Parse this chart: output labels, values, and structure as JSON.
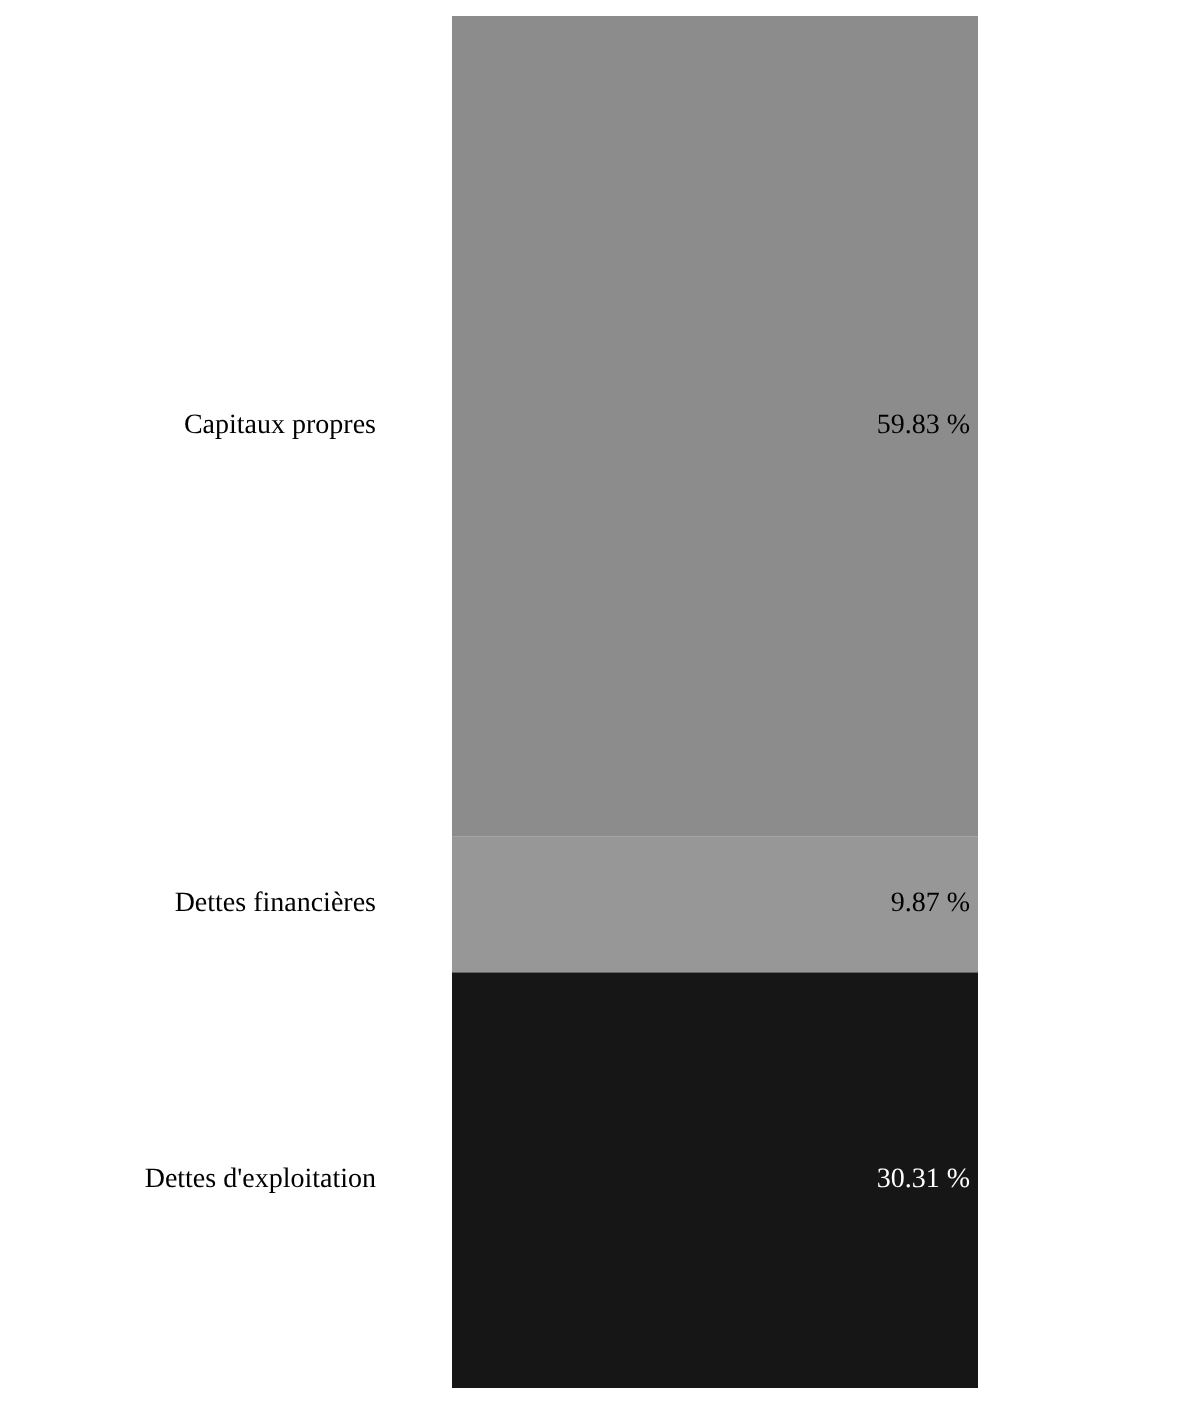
{
  "chart_data": {
    "type": "bar",
    "stacked": true,
    "categories": [
      null
    ],
    "series": [
      {
        "name": "Dettes d'exploitation",
        "color": "#161616",
        "values": [
          30.31
        ],
        "value_labels": [
          "30.31 %"
        ]
      },
      {
        "name": "Dettes financières",
        "color": "#979797",
        "values": [
          9.87
        ],
        "value_labels": [
          "9.87 %"
        ]
      },
      {
        "name": "Capitaux propres",
        "color": "#8c8c8c",
        "values": [
          59.83
        ],
        "value_labels": [
          "59.83 %"
        ]
      }
    ]
  }
}
